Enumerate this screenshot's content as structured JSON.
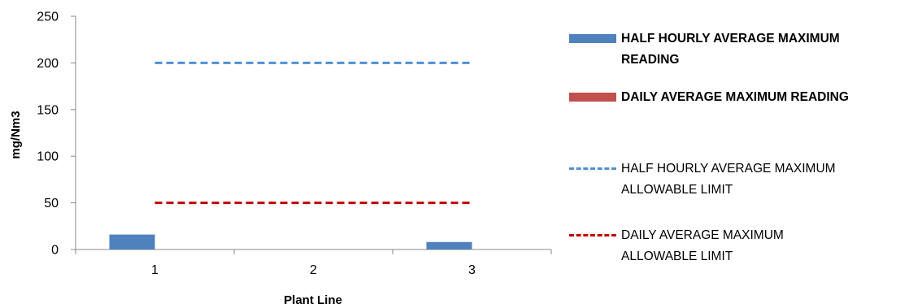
{
  "chart_data": {
    "type": "bar",
    "categories": [
      "1",
      "2",
      "3"
    ],
    "xlabel": "Plant Line",
    "ylabel": "mg/Nm3",
    "ylim": [
      0,
      250
    ],
    "yticks": [
      "0",
      "50",
      "100",
      "150",
      "200",
      "250"
    ],
    "grid": false,
    "legend_position": "right",
    "series": [
      {
        "name": "HALF HOURLY AVERAGE MAXIMUM READING",
        "kind": "bar",
        "color": "#4f81bd",
        "values": [
          16,
          0,
          8
        ]
      },
      {
        "name": "DAILY AVERAGE MAXIMUM READING",
        "kind": "bar",
        "color": "#c0504d",
        "values": [
          0,
          0,
          0
        ]
      },
      {
        "name": "HALF HOURLY AVERAGE MAXIMUM ALLOWABLE LIMIT",
        "kind": "dashed-line",
        "color": "#4f8fd6",
        "values": [
          200,
          200,
          200
        ]
      },
      {
        "name": "DAILY AVERAGE MAXIMUM ALLOWABLE LIMIT",
        "kind": "dashed-line",
        "color": "#c00000",
        "values": [
          50,
          50,
          50
        ]
      }
    ]
  }
}
